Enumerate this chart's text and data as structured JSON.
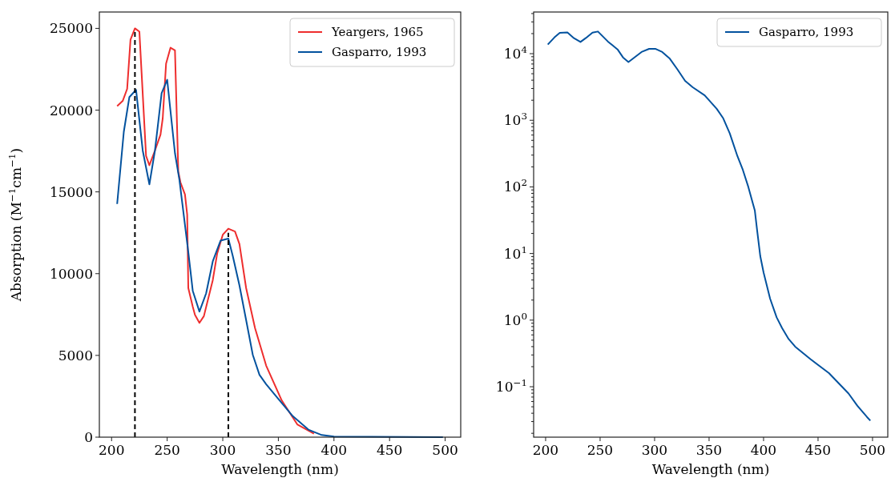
{
  "chart_data": [
    {
      "type": "line",
      "xlabel": "Wavelength (nm)",
      "ylabel": "Absorption (M$^{−1}$cm$^{−1}$)",
      "xlim": [
        189,
        514
      ],
      "ylim": [
        0,
        26000
      ],
      "xticks": [
        200,
        250,
        300,
        350,
        400,
        450,
        500
      ],
      "yticks": [
        0,
        5000,
        10000,
        15000,
        20000,
        25000
      ],
      "legend": "top right",
      "grid": false,
      "series": [
        {
          "name": "Yeargers, 1965",
          "color": "#ee2e2e",
          "x": [
            205,
            210,
            214,
            217,
            221,
            225,
            227,
            231,
            234,
            239,
            244,
            246,
            249,
            253,
            257,
            260,
            262,
            266,
            268,
            269,
            273,
            275,
            279,
            283,
            291,
            295,
            300,
            305,
            311,
            315,
            321,
            329,
            339,
            353,
            367,
            382
          ],
          "values": [
            20250,
            20560,
            21300,
            24300,
            25000,
            24800,
            22270,
            17200,
            16630,
            17530,
            18500,
            19500,
            22840,
            23820,
            23660,
            16230,
            15570,
            14840,
            13610,
            9120,
            7980,
            7480,
            6990,
            7400,
            9600,
            11240,
            12380,
            12750,
            12580,
            11810,
            9120,
            6670,
            4380,
            2250,
            780,
            210
          ]
        },
        {
          "name": "Gasparro, 1993",
          "color": "#03529e",
          "x": [
            205,
            211,
            216,
            222,
            228,
            234,
            239,
            245,
            250,
            257,
            261,
            269,
            273,
            279,
            285,
            291,
            298,
            305,
            309,
            315,
            321,
            327,
            333,
            339,
            349,
            363,
            377,
            389,
            400,
            498
          ],
          "values": [
            14260,
            18680,
            20800,
            21240,
            17530,
            15460,
            17530,
            21040,
            21860,
            17370,
            15740,
            11320,
            8950,
            7680,
            8790,
            10750,
            12020,
            12140,
            11080,
            9280,
            7160,
            5030,
            3810,
            3240,
            2420,
            1280,
            460,
            130,
            40,
            0
          ]
        },
        {
          "color": "#000000",
          "line_style": "dashed",
          "x": [
            221,
            221
          ],
          "values": [
            0,
            24800
          ]
        },
        {
          "color": "#000000",
          "line_style": "dashed",
          "x": [
            305,
            305
          ],
          "values": [
            0,
            12500
          ]
        }
      ]
    },
    {
      "type": "line",
      "xlabel": "Wavelength (nm)",
      "log": "y",
      "xlim": [
        189,
        514
      ],
      "ylim": [
        0.0175,
        42200
      ],
      "xticks": [
        200,
        250,
        300,
        350,
        400,
        450,
        500
      ],
      "legend": "top right",
      "grid": false,
      "yticks": [
        {
          "value": 0.02,
          "label": null
        },
        {
          "value": 0.03,
          "label": null
        },
        {
          "value": 0.04,
          "label": null
        },
        {
          "value": 0.05,
          "label": null
        },
        {
          "value": 0.06,
          "label": null
        },
        {
          "value": 0.07,
          "label": null
        },
        {
          "value": 0.08,
          "label": null
        },
        {
          "value": 0.09,
          "label": null
        },
        {
          "value": 0.1,
          "label": "10$^{−1}$"
        },
        {
          "value": 0.2,
          "label": null
        },
        {
          "value": 0.3,
          "label": null
        },
        {
          "value": 0.4,
          "label": null
        },
        {
          "value": 0.5,
          "label": null
        },
        {
          "value": 0.6,
          "label": null
        },
        {
          "value": 0.7,
          "label": null
        },
        {
          "value": 0.8,
          "label": null
        },
        {
          "value": 0.9,
          "label": null
        },
        {
          "value": 1,
          "label": "10$^{0}$"
        },
        {
          "value": 2,
          "label": null
        },
        {
          "value": 3,
          "label": null
        },
        {
          "value": 4,
          "label": null
        },
        {
          "value": 5,
          "label": null
        },
        {
          "value": 6,
          "label": null
        },
        {
          "value": 7,
          "label": null
        },
        {
          "value": 8,
          "label": null
        },
        {
          "value": 9,
          "label": null
        },
        {
          "value": 10,
          "label": "10$^{1}$"
        },
        {
          "value": 20,
          "label": null
        },
        {
          "value": 30,
          "label": null
        },
        {
          "value": 40,
          "label": null
        },
        {
          "value": 50,
          "label": null
        },
        {
          "value": 60,
          "label": null
        },
        {
          "value": 70,
          "label": null
        },
        {
          "value": 80,
          "label": null
        },
        {
          "value": 90,
          "label": null
        },
        {
          "value": 100,
          "label": "10$^{2}$"
        },
        {
          "value": 200,
          "label": null
        },
        {
          "value": 300,
          "label": null
        },
        {
          "value": 400,
          "label": null
        },
        {
          "value": 500,
          "label": null
        },
        {
          "value": 600,
          "label": null
        },
        {
          "value": 700,
          "label": null
        },
        {
          "value": 800,
          "label": null
        },
        {
          "value": 900,
          "label": null
        },
        {
          "value": 1000,
          "label": "10$^{3}$"
        },
        {
          "value": 2000,
          "label": null
        },
        {
          "value": 3000,
          "label": null
        },
        {
          "value": 4000,
          "label": null
        },
        {
          "value": 5000,
          "label": null
        },
        {
          "value": 6000,
          "label": null
        },
        {
          "value": 7000,
          "label": null
        },
        {
          "value": 8000,
          "label": null
        },
        {
          "value": 9000,
          "label": null
        },
        {
          "value": 10000,
          "label": "10$^{4}$"
        },
        {
          "value": 20000,
          "label": null
        },
        {
          "value": 30000,
          "label": null
        },
        {
          "value": 40000,
          "label": null
        }
      ],
      "series": [
        {
          "name": "Gasparro, 1993",
          "color": "#03529e",
          "x": [
            202,
            208,
            213,
            220,
            226,
            232,
            237,
            243,
            248,
            257,
            266,
            271,
            276,
            288,
            295,
            301,
            307,
            314,
            321,
            328,
            335,
            346,
            357,
            363,
            369,
            376,
            381,
            386,
            392,
            394,
            397,
            400,
            406,
            412,
            417,
            423,
            429,
            443,
            460,
            478,
            486,
            495,
            498
          ],
          "values": [
            13700,
            17500,
            20500,
            20800,
            17100,
            15000,
            17200,
            20700,
            21500,
            15300,
            11600,
            8800,
            7500,
            10600,
            11800,
            11800,
            10600,
            8400,
            5800,
            3900,
            3130,
            2370,
            1490,
            1070,
            634,
            290,
            180,
            100,
            44,
            23,
            9.1,
            5.2,
            2.1,
            1.1,
            0.76,
            0.52,
            0.4,
            0.26,
            0.16,
            0.079,
            0.052,
            0.035,
            0.031
          ]
        }
      ]
    }
  ]
}
